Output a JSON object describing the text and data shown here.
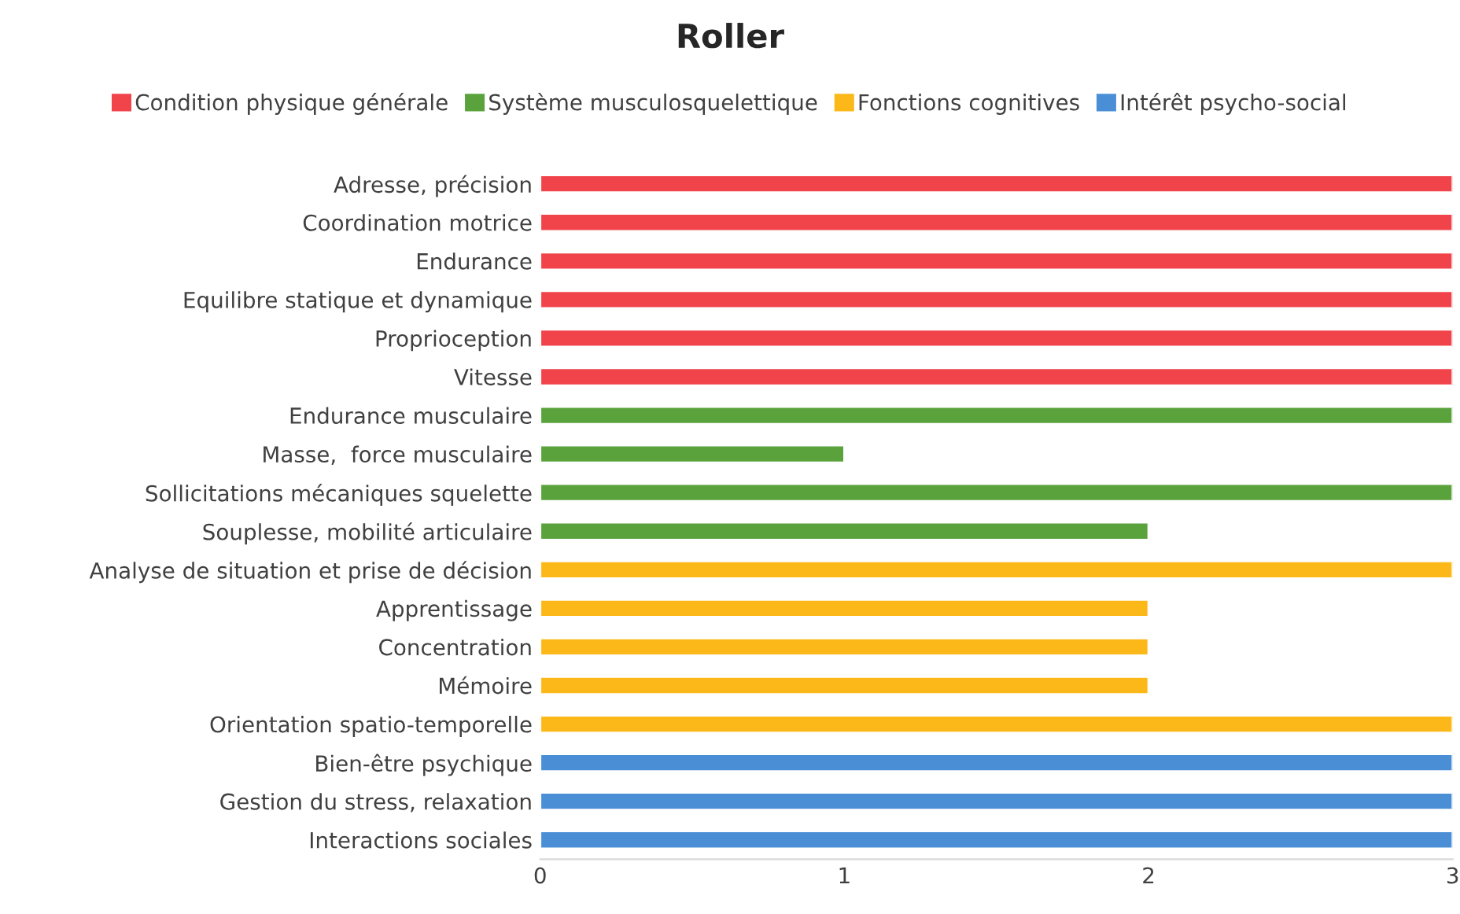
{
  "chart_data": {
    "type": "bar",
    "orientation": "horizontal",
    "title": "Roller",
    "categories": [
      "Adresse, précision",
      "Coordination motrice",
      "Endurance",
      "Equilibre statique et dynamique",
      "Proprioception",
      "Vitesse",
      "Endurance musculaire",
      "Masse,  force musculaire",
      "Sollicitations mécaniques squelette",
      "Souplesse, mobilité articulaire",
      "Analyse de situation et prise de décision",
      "Apprentissage",
      "Concentration",
      "Mémoire",
      "Orientation spatio-temporelle",
      "Bien-être psychique",
      "Gestion du stress, relaxation",
      "Interactions sociales"
    ],
    "series": [
      {
        "name": "Condition physique générale",
        "color": "#f0434a",
        "values": [
          3,
          3,
          3,
          3,
          3,
          3,
          null,
          null,
          null,
          null,
          null,
          null,
          null,
          null,
          null,
          null,
          null,
          null
        ]
      },
      {
        "name": "Système musculosquelettique",
        "color": "#5aa33c",
        "values": [
          null,
          null,
          null,
          null,
          null,
          null,
          3,
          1,
          3,
          2,
          null,
          null,
          null,
          null,
          null,
          null,
          null,
          null
        ]
      },
      {
        "name": "Fonctions cognitives",
        "color": "#fbb818",
        "values": [
          null,
          null,
          null,
          null,
          null,
          null,
          null,
          null,
          null,
          null,
          3,
          2,
          2,
          2,
          3,
          null,
          null,
          null
        ]
      },
      {
        "name": "Intérêt psycho-social",
        "color": "#4a8fd6",
        "values": [
          null,
          null,
          null,
          null,
          null,
          null,
          null,
          null,
          null,
          null,
          null,
          null,
          null,
          null,
          null,
          3,
          3,
          3
        ]
      }
    ],
    "xlim": [
      0,
      3
    ],
    "xticks": [
      0,
      1,
      2,
      3
    ],
    "legend": "top",
    "grid": false
  }
}
